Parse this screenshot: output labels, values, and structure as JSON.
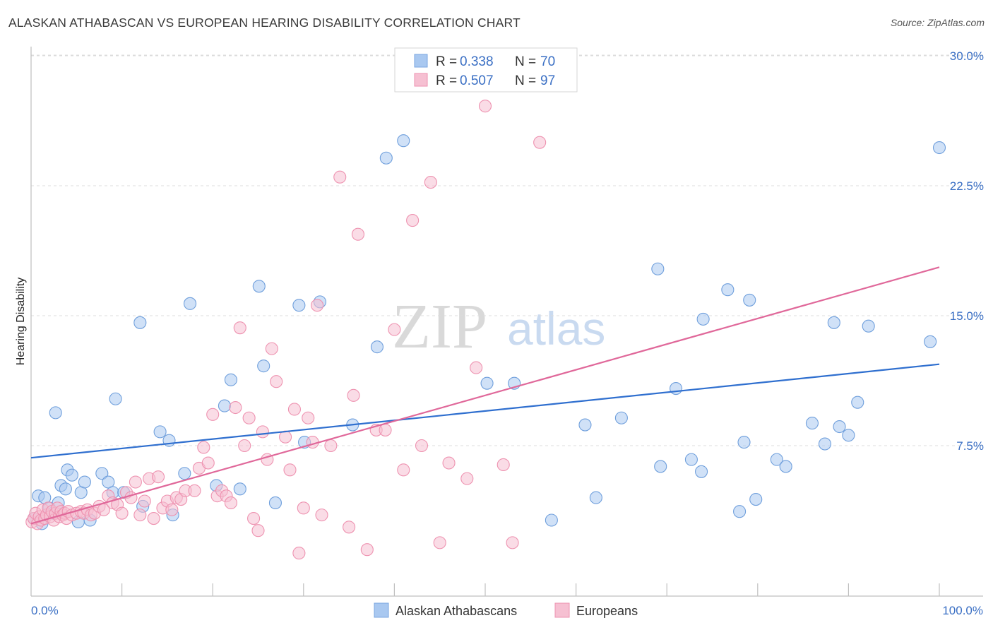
{
  "title": "ALASKAN ATHABASCAN VS EUROPEAN HEARING DISABILITY CORRELATION CHART",
  "source": "Source: ZipAtlas.com",
  "watermark": {
    "zip": "ZIP",
    "atlas": "atlas"
  },
  "legend": {
    "r_label": "R =",
    "n_label": "N =",
    "rows": [
      {
        "r": "0.338",
        "n": "70",
        "color": "#a9c8f0",
        "edge": "#7aa6e0"
      },
      {
        "r": "0.507",
        "n": "97",
        "color": "#f6c0d2",
        "edge": "#ee92b0"
      }
    ]
  },
  "bottom_legend": [
    "Alaskan Athabascans",
    "Europeans"
  ],
  "chart_data": {
    "type": "scatter",
    "ylabel": "Hearing Disability",
    "xlabel": "",
    "xlim": [
      0,
      100
    ],
    "ylim": [
      0,
      30
    ],
    "x_tick_labels": [
      {
        "value": 0,
        "label": "0.0%"
      },
      {
        "value": 100,
        "label": "100.0%"
      }
    ],
    "y_tick_labels": [
      {
        "value": 7.5,
        "label": "7.5%"
      },
      {
        "value": 15,
        "label": "15.0%"
      },
      {
        "value": 22.5,
        "label": "22.5%"
      },
      {
        "value": 30,
        "label": "30.0%"
      }
    ],
    "grid": "horizontal dashed",
    "series": [
      {
        "name": "Alaskan Athabascans",
        "color": "#a9c8f0",
        "edge": "#6f9fdc",
        "trend_color": "#2f6fcf",
        "trend": [
          [
            0,
            6.8
          ],
          [
            100,
            12.2
          ]
        ],
        "points": [
          [
            0.3,
            3.3
          ],
          [
            0.8,
            4.6
          ],
          [
            1.2,
            3.0
          ],
          [
            1.5,
            4.5
          ],
          [
            2.0,
            3.9
          ],
          [
            2.4,
            3.6
          ],
          [
            2.7,
            9.4
          ],
          [
            3.0,
            4.2
          ],
          [
            3.3,
            5.2
          ],
          [
            3.8,
            5.0
          ],
          [
            4.0,
            6.1
          ],
          [
            4.5,
            5.8
          ],
          [
            5.2,
            3.1
          ],
          [
            5.5,
            4.8
          ],
          [
            5.9,
            5.4
          ],
          [
            6.5,
            3.2
          ],
          [
            7.8,
            5.9
          ],
          [
            8.5,
            5.4
          ],
          [
            9.0,
            4.8
          ],
          [
            9.3,
            10.2
          ],
          [
            10.2,
            4.8
          ],
          [
            12.0,
            14.6
          ],
          [
            12.3,
            4.0
          ],
          [
            14.2,
            8.3
          ],
          [
            15.2,
            7.8
          ],
          [
            15.6,
            3.5
          ],
          [
            16.9,
            5.9
          ],
          [
            17.5,
            15.7
          ],
          [
            20.4,
            5.2
          ],
          [
            21.3,
            9.8
          ],
          [
            22.0,
            11.3
          ],
          [
            23.0,
            5.0
          ],
          [
            25.1,
            16.7
          ],
          [
            25.6,
            12.1
          ],
          [
            26.9,
            4.2
          ],
          [
            29.5,
            15.6
          ],
          [
            30.1,
            7.7
          ],
          [
            31.8,
            15.8
          ],
          [
            35.4,
            8.7
          ],
          [
            38.1,
            13.2
          ],
          [
            39.1,
            24.1
          ],
          [
            41.0,
            25.1
          ],
          [
            50.2,
            11.1
          ],
          [
            53.2,
            11.1
          ],
          [
            57.3,
            3.2
          ],
          [
            61.0,
            8.7
          ],
          [
            62.2,
            4.5
          ],
          [
            65.0,
            9.1
          ],
          [
            69.0,
            17.7
          ],
          [
            69.3,
            6.3
          ],
          [
            71.0,
            10.8
          ],
          [
            72.7,
            6.7
          ],
          [
            73.8,
            6.0
          ],
          [
            74.0,
            14.8
          ],
          [
            76.7,
            16.5
          ],
          [
            78.0,
            3.7
          ],
          [
            78.5,
            7.7
          ],
          [
            79.1,
            15.9
          ],
          [
            79.8,
            4.4
          ],
          [
            82.1,
            6.7
          ],
          [
            83.1,
            6.3
          ],
          [
            86.0,
            8.8
          ],
          [
            87.4,
            7.6
          ],
          [
            88.4,
            14.6
          ],
          [
            89.0,
            8.6
          ],
          [
            90.0,
            8.1
          ],
          [
            91.0,
            10.0
          ],
          [
            92.2,
            14.4
          ],
          [
            99.0,
            13.5
          ],
          [
            100.0,
            24.7
          ]
        ]
      },
      {
        "name": "Europeans",
        "color": "#f6c0d2",
        "edge": "#ee92b0",
        "trend_color": "#e0689a",
        "trend": [
          [
            0,
            3.0
          ],
          [
            100,
            17.8
          ]
        ],
        "points": [
          [
            0.1,
            3.1
          ],
          [
            0.3,
            3.3
          ],
          [
            0.5,
            3.6
          ],
          [
            0.7,
            3.0
          ],
          [
            0.9,
            3.4
          ],
          [
            1.1,
            3.2
          ],
          [
            1.3,
            3.8
          ],
          [
            1.5,
            3.3
          ],
          [
            1.7,
            3.5
          ],
          [
            1.9,
            3.9
          ],
          [
            2.1,
            3.4
          ],
          [
            2.3,
            3.7
          ],
          [
            2.5,
            3.2
          ],
          [
            2.7,
            3.6
          ],
          [
            2.9,
            3.9
          ],
          [
            3.1,
            3.4
          ],
          [
            3.3,
            3.7
          ],
          [
            3.5,
            3.5
          ],
          [
            3.7,
            3.6
          ],
          [
            3.9,
            3.3
          ],
          [
            4.1,
            3.7
          ],
          [
            4.5,
            3.5
          ],
          [
            5.0,
            3.6
          ],
          [
            5.5,
            3.7
          ],
          [
            5.8,
            3.6
          ],
          [
            6.2,
            3.8
          ],
          [
            6.6,
            3.5
          ],
          [
            7.0,
            3.6
          ],
          [
            7.5,
            4.0
          ],
          [
            8.0,
            3.8
          ],
          [
            8.5,
            4.6
          ],
          [
            9.0,
            4.2
          ],
          [
            9.5,
            4.1
          ],
          [
            10.0,
            3.6
          ],
          [
            10.5,
            4.8
          ],
          [
            11.0,
            4.5
          ],
          [
            11.5,
            5.4
          ],
          [
            12.0,
            3.5
          ],
          [
            12.5,
            4.3
          ],
          [
            13.0,
            5.6
          ],
          [
            13.5,
            3.3
          ],
          [
            14.0,
            5.7
          ],
          [
            14.5,
            3.9
          ],
          [
            15.0,
            4.3
          ],
          [
            15.5,
            3.8
          ],
          [
            16.0,
            4.5
          ],
          [
            16.5,
            4.4
          ],
          [
            17.0,
            4.9
          ],
          [
            18.0,
            4.9
          ],
          [
            18.5,
            6.2
          ],
          [
            19.0,
            7.4
          ],
          [
            19.5,
            6.5
          ],
          [
            20.0,
            9.3
          ],
          [
            20.5,
            4.6
          ],
          [
            21.0,
            4.9
          ],
          [
            21.5,
            4.6
          ],
          [
            22.0,
            4.2
          ],
          [
            22.5,
            9.7
          ],
          [
            23.0,
            14.3
          ],
          [
            23.5,
            7.5
          ],
          [
            24.0,
            9.1
          ],
          [
            24.5,
            3.3
          ],
          [
            25.0,
            2.6
          ],
          [
            25.5,
            8.3
          ],
          [
            26.0,
            6.7
          ],
          [
            26.5,
            13.1
          ],
          [
            27.0,
            11.2
          ],
          [
            28.0,
            8.0
          ],
          [
            28.5,
            6.1
          ],
          [
            29.0,
            9.6
          ],
          [
            29.5,
            1.3
          ],
          [
            30.0,
            3.9
          ],
          [
            30.5,
            9.1
          ],
          [
            31.0,
            7.7
          ],
          [
            31.5,
            15.6
          ],
          [
            32.0,
            3.5
          ],
          [
            33.0,
            7.5
          ],
          [
            34.0,
            23.0
          ],
          [
            35.0,
            2.8
          ],
          [
            35.5,
            10.4
          ],
          [
            36.0,
            19.7
          ],
          [
            37.0,
            1.5
          ],
          [
            38.0,
            8.4
          ],
          [
            39.0,
            8.4
          ],
          [
            40.0,
            14.2
          ],
          [
            41.0,
            6.1
          ],
          [
            42.0,
            20.5
          ],
          [
            43.0,
            7.5
          ],
          [
            44.0,
            22.7
          ],
          [
            45.0,
            1.9
          ],
          [
            46.0,
            6.5
          ],
          [
            48.0,
            5.6
          ],
          [
            49.0,
            12.0
          ],
          [
            50.0,
            27.1
          ],
          [
            52.0,
            6.4
          ],
          [
            53.0,
            1.9
          ],
          [
            56.0,
            25.0
          ]
        ]
      }
    ]
  }
}
